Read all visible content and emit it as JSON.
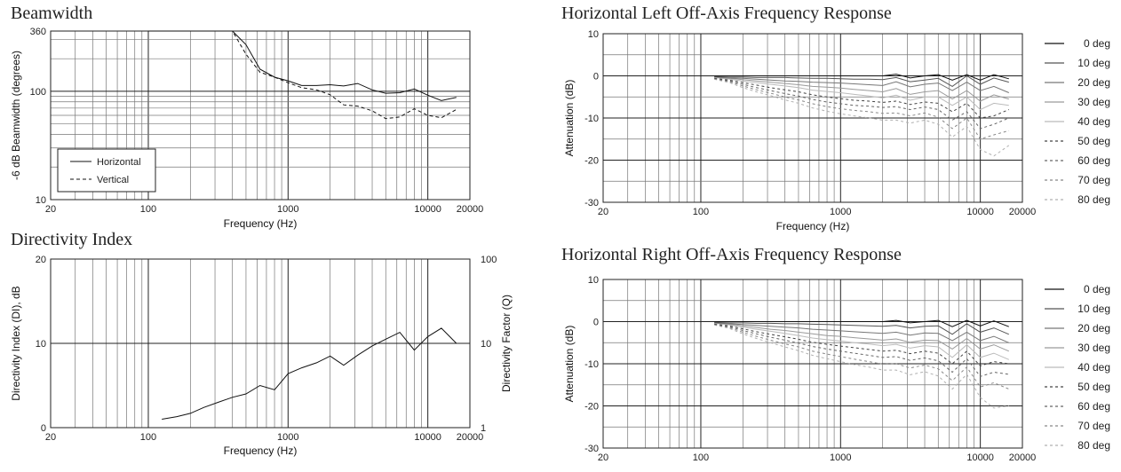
{
  "chart_data": [
    {
      "type": "line",
      "title": "Beamwidth",
      "xlabel": "Frequency (Hz)",
      "ylabel": "-6 dB Beamwidth (degrees)",
      "xscale": "log",
      "yscale": "log",
      "xlim": [
        20,
        20000
      ],
      "ylim": [
        10,
        360
      ],
      "xticks": [
        "20",
        "100",
        "1000",
        "10000",
        "20000"
      ],
      "yticks": [
        "10",
        "100",
        "360"
      ],
      "grid": true,
      "legend": "bottom-left",
      "series": [
        {
          "name": "Horizontal",
          "style": "solid",
          "x": [
            100,
            200,
            400,
            500,
            630,
            800,
            1000,
            1250,
            1600,
            2000,
            2500,
            3150,
            4000,
            5000,
            6300,
            8000,
            10000,
            12500,
            16000
          ],
          "y": [
            360,
            360,
            360,
            270,
            160,
            135,
            125,
            113,
            113,
            115,
            112,
            118,
            103,
            96,
            97,
            105,
            92,
            82,
            88
          ]
        },
        {
          "name": "Vertical",
          "style": "dashed",
          "x": [
            100,
            200,
            400,
            500,
            630,
            800,
            1000,
            1250,
            1600,
            2000,
            2500,
            3150,
            4000,
            5000,
            6300,
            8000,
            10000,
            12500,
            16000
          ],
          "y": [
            360,
            360,
            360,
            220,
            150,
            135,
            120,
            108,
            103,
            93,
            75,
            73,
            66,
            56,
            58,
            69,
            60,
            57,
            68
          ]
        }
      ]
    },
    {
      "type": "line",
      "title": "Directivity Index",
      "xlabel": "Frequency (Hz)",
      "ylabel": "Directivity Index (DI), dB",
      "y2label": "Directivity Factor (Q)",
      "xscale": "log",
      "xlim": [
        20,
        20000
      ],
      "ylim": [
        0,
        20
      ],
      "xticks": [
        "20",
        "100",
        "1000",
        "10000",
        "20000"
      ],
      "yticks": [
        "0",
        "10",
        "20"
      ],
      "y2ticks": [
        "1",
        "10",
        "100"
      ],
      "grid": true,
      "series": [
        {
          "name": "",
          "x": [
            125,
            160,
            200,
            250,
            315,
            400,
            500,
            630,
            800,
            1000,
            1250,
            1600,
            2000,
            2500,
            3150,
            4000,
            5000,
            6300,
            8000,
            10000,
            12500,
            16000
          ],
          "y": [
            1.0,
            1.3,
            1.7,
            2.4,
            3.0,
            3.6,
            4.0,
            5.0,
            4.5,
            6.4,
            7.1,
            7.7,
            8.5,
            7.4,
            8.6,
            9.7,
            10.5,
            11.3,
            9.2,
            10.8,
            11.8,
            10.0
          ]
        }
      ]
    },
    {
      "type": "line",
      "title": "Horizontal Left Off-Axis Frequency Response",
      "xlabel": "Frequency (Hz)",
      "ylabel": "Attenuation (dB)",
      "xscale": "log",
      "xlim": [
        20,
        20000
      ],
      "ylim": [
        -30,
        10
      ],
      "xticks": [
        "20",
        "100",
        "1000",
        "10000",
        "20000"
      ],
      "yticks": [
        "10",
        "0",
        "-10",
        "-20",
        "-30"
      ],
      "grid": true,
      "legend": "right",
      "x": [
        125,
        160,
        200,
        250,
        315,
        400,
        500,
        630,
        800,
        1000,
        1250,
        1600,
        2000,
        2500,
        3150,
        4000,
        5000,
        6300,
        8000,
        10000,
        12500,
        16000
      ],
      "series": [
        {
          "name": "0 deg",
          "style": "solid",
          "color": "#111111",
          "y": [
            0,
            0,
            0,
            0,
            0,
            0,
            0,
            0,
            0,
            0,
            0,
            0,
            0,
            0.4,
            -0.5,
            0,
            0.3,
            -1,
            0.3,
            -1,
            0.3,
            -0.7
          ]
        },
        {
          "name": "10 deg",
          "style": "solid",
          "color": "#555555",
          "y": [
            -0.2,
            -0.3,
            -0.3,
            -0.4,
            -0.4,
            -0.4,
            -0.5,
            -0.6,
            -0.6,
            -0.7,
            -0.8,
            -0.8,
            -0.9,
            -0.4,
            -1.4,
            -1.0,
            -0.6,
            -2.5,
            0,
            -2,
            -0.5,
            -1.5
          ]
        },
        {
          "name": "20 deg",
          "style": "solid",
          "color": "#777777",
          "y": [
            -0.3,
            -0.5,
            -0.6,
            -0.8,
            -1.0,
            -1.2,
            -1.3,
            -1.5,
            -1.6,
            -1.7,
            -1.9,
            -2.1,
            -2.3,
            -1.4,
            -2.6,
            -2.0,
            -1.7,
            -3.5,
            -1.5,
            -3.5,
            -2.5,
            -4
          ]
        },
        {
          "name": "30 deg",
          "style": "solid",
          "color": "#9a9a9a",
          "y": [
            -0.3,
            -0.6,
            -0.9,
            -1.2,
            -1.5,
            -1.8,
            -2.1,
            -2.5,
            -2.7,
            -2.9,
            -3.2,
            -3.5,
            -3.8,
            -3.0,
            -4.4,
            -3.8,
            -3.5,
            -5.5,
            -3.5,
            -6,
            -4.5,
            -5.5
          ]
        },
        {
          "name": "40 deg",
          "style": "solid",
          "color": "#bbbbbb",
          "y": [
            -0.4,
            -0.8,
            -1.2,
            -1.6,
            -2.0,
            -2.4,
            -2.8,
            -3.4,
            -3.7,
            -4.0,
            -4.4,
            -4.8,
            -5.2,
            -4.6,
            -5.8,
            -5.0,
            -5.0,
            -7.0,
            -5.0,
            -8,
            -6.5,
            -7
          ]
        },
        {
          "name": "50 deg",
          "style": "dashed",
          "color": "#444444",
          "y": [
            -0.5,
            -1.0,
            -1.6,
            -2.2,
            -2.8,
            -3.3,
            -3.8,
            -4.5,
            -5.0,
            -5.4,
            -5.8,
            -6.0,
            -6.3,
            -6.0,
            -6.8,
            -6.2,
            -6.5,
            -8.5,
            -6.5,
            -10,
            -9.5,
            -8
          ]
        },
        {
          "name": "60 deg",
          "style": "dashed",
          "color": "#666666",
          "y": [
            -0.6,
            -1.2,
            -2.0,
            -2.8,
            -3.5,
            -4.2,
            -4.8,
            -5.6,
            -6.2,
            -6.6,
            -7.0,
            -7.2,
            -7.5,
            -7.3,
            -8.0,
            -7.4,
            -8.0,
            -10.5,
            -8.5,
            -12.5,
            -11.5,
            -10
          ]
        },
        {
          "name": "70 deg",
          "style": "dashed",
          "color": "#888888",
          "y": [
            -0.7,
            -1.4,
            -2.4,
            -3.3,
            -4.1,
            -5.0,
            -5.7,
            -6.6,
            -7.3,
            -7.8,
            -8.2,
            -8.5,
            -8.9,
            -8.8,
            -9.5,
            -8.8,
            -9.8,
            -12.5,
            -10.0,
            -15,
            -14,
            -13
          ]
        },
        {
          "name": "80 deg",
          "style": "dashed",
          "color": "#b0b0b0",
          "y": [
            -0.8,
            -1.6,
            -2.8,
            -3.8,
            -4.7,
            -5.7,
            -6.5,
            -7.6,
            -8.4,
            -9.0,
            -9.5,
            -10.0,
            -10.5,
            -10.5,
            -11.2,
            -10.5,
            -11.5,
            -14.5,
            -12.0,
            -17.5,
            -19,
            -16.5
          ]
        }
      ]
    },
    {
      "type": "line",
      "title": "Horizontal Right Off-Axis Frequency Response",
      "xlabel": "",
      "ylabel": "Attenuation (dB)",
      "xscale": "log",
      "xlim": [
        20,
        20000
      ],
      "ylim": [
        -30,
        10
      ],
      "xticks": [
        "20",
        "100",
        "1000",
        "10000",
        "20000"
      ],
      "yticks": [
        "10",
        "0",
        "-10",
        "-20",
        "-30"
      ],
      "grid": true,
      "legend": "right",
      "x": [
        125,
        160,
        200,
        250,
        315,
        400,
        500,
        630,
        800,
        1000,
        1250,
        1600,
        2000,
        2500,
        3150,
        4000,
        5000,
        6300,
        8000,
        10000,
        12500,
        16000
      ],
      "series": [
        {
          "name": "0 deg",
          "style": "solid",
          "color": "#111111",
          "y": [
            0,
            0,
            0,
            0,
            0,
            0,
            0,
            0,
            0,
            0,
            0,
            0,
            0,
            0.3,
            -0.3,
            0,
            0.3,
            -1.2,
            0.3,
            -1,
            0.2,
            -1.2
          ]
        },
        {
          "name": "10 deg",
          "style": "solid",
          "color": "#555555",
          "y": [
            -0.2,
            -0.3,
            -0.3,
            -0.4,
            -0.4,
            -0.5,
            -0.5,
            -0.6,
            -0.7,
            -0.8,
            -0.9,
            -1.0,
            -1.1,
            -0.9,
            -1.5,
            -1.1,
            -1.0,
            -3,
            -0.5,
            -2.5,
            -1.5,
            -3
          ]
        },
        {
          "name": "20 deg",
          "style": "solid",
          "color": "#777777",
          "y": [
            -0.3,
            -0.5,
            -0.7,
            -0.9,
            -1.1,
            -1.3,
            -1.5,
            -1.8,
            -2.0,
            -2.2,
            -2.4,
            -2.6,
            -2.8,
            -2.5,
            -3.2,
            -2.7,
            -2.8,
            -4.5,
            -2.5,
            -4.5,
            -3.5,
            -5
          ]
        },
        {
          "name": "30 deg",
          "style": "solid",
          "color": "#9a9a9a",
          "y": [
            -0.3,
            -0.6,
            -1.0,
            -1.4,
            -1.8,
            -2.1,
            -2.5,
            -2.9,
            -3.3,
            -3.5,
            -3.8,
            -4.1,
            -4.4,
            -4.1,
            -4.9,
            -4.4,
            -4.5,
            -6.5,
            -4.0,
            -6.5,
            -5.5,
            -7
          ]
        },
        {
          "name": "40 deg",
          "style": "solid",
          "color": "#bbbbbb",
          "y": [
            -0.4,
            -0.8,
            -1.3,
            -1.8,
            -2.3,
            -2.8,
            -3.3,
            -3.9,
            -4.3,
            -4.6,
            -5.0,
            -5.3,
            -5.7,
            -5.4,
            -6.3,
            -5.7,
            -6.0,
            -8.5,
            -5.5,
            -8.5,
            -7.5,
            -9
          ]
        },
        {
          "name": "50 deg",
          "style": "dashed",
          "color": "#444444",
          "y": [
            -0.5,
            -1.0,
            -1.7,
            -2.4,
            -3.0,
            -3.6,
            -4.2,
            -4.9,
            -5.4,
            -5.8,
            -6.2,
            -6.6,
            -7.0,
            -6.8,
            -7.6,
            -7.0,
            -7.5,
            -10.0,
            -7.0,
            -10.5,
            -9.5,
            -10
          ]
        },
        {
          "name": "60 deg",
          "style": "dashed",
          "color": "#666666",
          "y": [
            -0.6,
            -1.2,
            -2.1,
            -2.9,
            -3.7,
            -4.4,
            -5.1,
            -5.9,
            -6.5,
            -7.0,
            -7.5,
            -8.0,
            -8.5,
            -8.3,
            -9.2,
            -8.6,
            -9.3,
            -12.0,
            -8.8,
            -13.0,
            -12.0,
            -12.5
          ]
        },
        {
          "name": "70 deg",
          "style": "dashed",
          "color": "#888888",
          "y": [
            -0.7,
            -1.4,
            -2.5,
            -3.5,
            -4.4,
            -5.3,
            -6.0,
            -7.0,
            -7.7,
            -8.3,
            -8.9,
            -9.5,
            -10.1,
            -10.0,
            -11.0,
            -10.3,
            -11.2,
            -14.0,
            -10.8,
            -15.5,
            -14.5,
            -16
          ]
        },
        {
          "name": "80 deg",
          "style": "dashed",
          "color": "#b0b0b0",
          "y": [
            -0.8,
            -1.6,
            -2.9,
            -4.0,
            -5.0,
            -6.0,
            -6.9,
            -8.0,
            -8.8,
            -9.5,
            -10.2,
            -10.8,
            -11.5,
            -11.5,
            -12.6,
            -11.9,
            -12.9,
            -16.0,
            -12.5,
            -18.0,
            -20.5,
            -20
          ]
        }
      ]
    }
  ]
}
